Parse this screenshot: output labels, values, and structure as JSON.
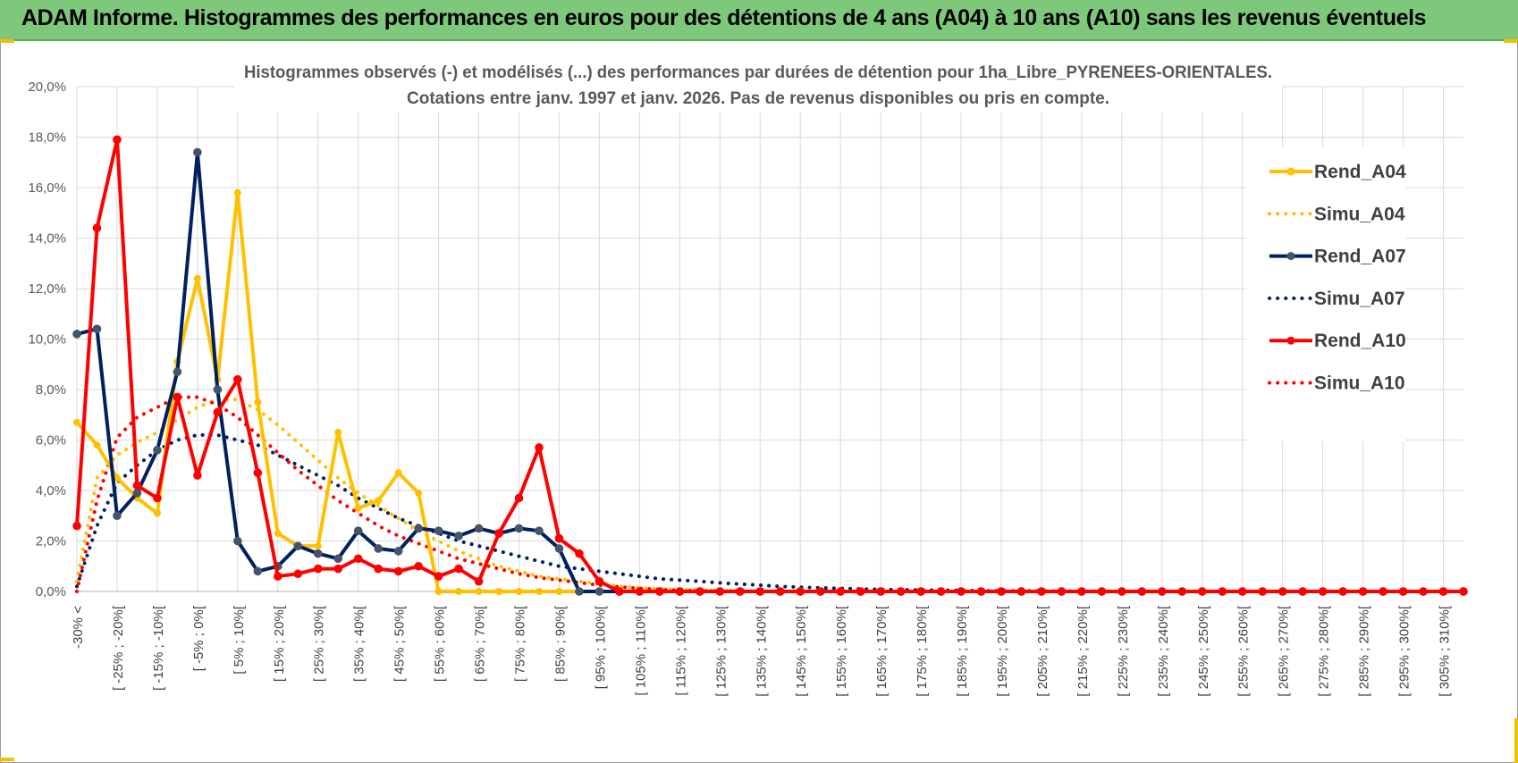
{
  "header": {
    "title": "ADAM Informe. Histogrammes des performances en euros pour des détentions de 4 ans (A04) à 10 ans (A10) sans les revenus éventuels"
  },
  "colors": {
    "banner": "#7dc87a",
    "A04": "#ffc000",
    "A07": "#002060",
    "A10": "#ff0000",
    "grid": "#d9d9d9"
  },
  "chart_data": {
    "type": "line",
    "title": "Histogrammes observés (-) et modélisés (...) des performances par durées de détention pour 1ha_Libre_PYRENEES-ORIENTALES.",
    "subtitle": "Cotations entre janv. 1997 et janv. 2026. Pas de revenus disponibles ou pris en compte.",
    "xlabel": "",
    "ylabel": "",
    "ylim": [
      0,
      20
    ],
    "y_ticks": [
      "0,0%",
      "2,0%",
      "4,0%",
      "6,0%",
      "8,0%",
      "10,0%",
      "12,0%",
      "14,0%",
      "16,0%",
      "18,0%",
      "20,0%"
    ],
    "grid": true,
    "legend_position": "right",
    "categories": [
      "-30% <",
      "[ -30% ; -25%[",
      "[ -25% ; -20%[",
      "[ -20% ; -15%[",
      "[ -15% ; -10%[",
      "[ -10% ; -5%[",
      "[ -5% ; 0%[",
      "[ 0% ; 5%[",
      "[ 5% ; 10%[",
      "[ 10% ; 15%[",
      "[ 15% ; 20%[",
      "[ 20% ; 25%[",
      "[ 25% ; 30%[",
      "[ 30% ; 35%[",
      "[ 35% ; 40%[",
      "[ 40% ; 45%[",
      "[ 45% ; 50%[",
      "[ 50% ; 55%[",
      "[ 55% ; 60%[",
      "[ 60% ; 65%[",
      "[ 65% ; 70%[",
      "[ 70% ; 75%[",
      "[ 75% ; 80%[",
      "[ 80% ; 85%[",
      "[ 85% ; 90%[",
      "[ 90% ; 95%[",
      "[ 95% ; 100%[",
      "[ 100% ; 105%[",
      "[ 105% ; 110%[",
      "[ 110% ; 115%[",
      "[ 115% ; 120%[",
      "[ 120% ; 125%[",
      "[ 125% ; 130%[",
      "[ 130% ; 135%[",
      "[ 135% ; 140%[",
      "[ 140% ; 145%[",
      "[ 145% ; 150%[",
      "[ 150% ; 155%[",
      "[ 155% ; 160%[",
      "[ 160% ; 165%[",
      "[ 165% ; 170%[",
      "[ 170% ; 175%[",
      "[ 175% ; 180%[",
      "[ 180% ; 185%[",
      "[ 185% ; 190%[",
      "[ 190% ; 195%[",
      "[ 195% ; 200%[",
      "[ 200% ; 205%[",
      "[ 205% ; 210%[",
      "[ 210% ; 215%[",
      "[ 215% ; 220%[",
      "[ 220% ; 225%[",
      "[ 225% ; 230%[",
      "[ 230% ; 235%[",
      "[ 235% ; 240%[",
      "[ 240% ; 245%[",
      "[ 245% ; 250%[",
      "[ 250% ; 255%[",
      "[ 255% ; 260%[",
      "[ 260% ; 265%[",
      "[ 265% ; 270%[",
      "[ 270% ; 275%[",
      "[ 275% ; 280%[",
      "[ 280% ; 285%[",
      "[ 285% ; 290%[",
      "[ 290% ; 295%[",
      "[ 295% ; 300%[",
      "[ 300% ; 305%[",
      "[ 305% ; 310%[",
      "[ 310% ; 315%["
    ],
    "tick_labels": [
      "-30% <",
      "[ -25% ; -20%[",
      "[ -15% ; -10%[",
      "[ -5% ; 0%[",
      "[ 5% ; 10%[",
      "[ 15% ; 20%[",
      "[ 25% ; 30%[",
      "[ 35% ; 40%[",
      "[ 45% ; 50%[",
      "[ 55% ; 60%[",
      "[ 65% ; 70%[",
      "[ 75% ; 80%[",
      "[ 85% ; 90%[",
      "[ 95% ; 100%[",
      "[ 105% ; 110%[",
      "[ 115% ; 120%[",
      "[ 125% ; 130%[",
      "[ 135% ; 140%[",
      "[ 145% ; 150%[",
      "[ 155% ; 160%[",
      "[ 165% ; 170%[",
      "[ 175% ; 180%[",
      "[ 185% ; 190%[",
      "[ 195% ; 200%[",
      "[ 205% ; 210%[",
      "[ 215% ; 220%[",
      "[ 225% ; 230%[",
      "[ 235% ; 240%[",
      "[ 245% ; 250%[",
      "[ 255% ; 260%[",
      "[ 265% ; 270%[",
      "[ 275% ; 280%[",
      "[ 285% ; 290%[",
      "[ 295% ; 300%[",
      "[ 305% ; 310%["
    ],
    "series": [
      {
        "name": "Rend_A04",
        "style": "solid",
        "color": "#ffc000",
        "values": [
          6.7,
          5.8,
          4.5,
          3.7,
          3.1,
          9.1,
          12.4,
          8.4,
          15.8,
          7.5,
          2.3,
          1.8,
          1.8,
          6.3,
          3.3,
          3.6,
          4.7,
          3.9,
          0,
          0,
          0,
          0,
          0,
          0,
          0,
          0,
          0,
          0,
          0,
          0,
          0,
          0,
          0,
          0,
          0,
          0,
          0,
          0,
          0,
          0,
          0,
          0,
          0,
          0,
          0,
          0,
          0,
          0,
          0,
          0,
          0,
          0,
          0,
          0,
          0,
          0,
          0,
          0,
          0,
          0,
          0,
          0,
          0,
          0,
          0,
          0,
          0,
          0,
          0,
          0
        ]
      },
      {
        "name": "Simu_A04",
        "style": "dotted",
        "color": "#ffc000",
        "values": [
          0.4,
          4.5,
          5.4,
          5.9,
          6.3,
          6.8,
          7.3,
          7.6,
          7.6,
          7.2,
          6.6,
          5.9,
          5.2,
          4.5,
          3.9,
          3.4,
          2.9,
          2.4,
          2.0,
          1.6,
          1.3,
          1.0,
          0.8,
          0.6,
          0.5,
          0.4,
          0.3,
          0.2,
          0.15,
          0.1,
          0.08,
          0.06,
          0.04,
          0.03,
          0.02,
          0.01,
          0.01,
          0,
          0,
          0,
          0,
          0,
          0,
          0,
          0,
          0,
          0,
          0,
          0,
          0,
          0,
          0,
          0,
          0,
          0,
          0,
          0,
          0,
          0,
          0,
          0,
          0,
          0,
          0,
          0,
          0,
          0,
          0,
          0,
          0
        ]
      },
      {
        "name": "Rend_A07",
        "style": "solid",
        "color": "#002060",
        "values": [
          10.2,
          10.4,
          3.0,
          3.9,
          5.6,
          8.7,
          17.4,
          8.0,
          2.0,
          0.8,
          1.0,
          1.8,
          1.5,
          1.3,
          2.4,
          1.7,
          1.6,
          2.5,
          2.4,
          2.2,
          2.5,
          2.3,
          2.5,
          2.4,
          1.7,
          0,
          0,
          0,
          0,
          0,
          0,
          0,
          0,
          0,
          0,
          0,
          0,
          0,
          0,
          0,
          0,
          0,
          0,
          0,
          0,
          0,
          0,
          0,
          0,
          0,
          0,
          0,
          0,
          0,
          0,
          0,
          0,
          0,
          0,
          0,
          0,
          0,
          0,
          0,
          0,
          0,
          0,
          0,
          0,
          0
        ]
      },
      {
        "name": "Simu_A07",
        "style": "dotted",
        "color": "#002060",
        "values": [
          0.2,
          2.6,
          4.3,
          5.0,
          5.6,
          6.0,
          6.2,
          6.2,
          6.0,
          5.8,
          5.4,
          5.0,
          4.6,
          4.2,
          3.7,
          3.3,
          2.9,
          2.6,
          2.3,
          2.0,
          1.8,
          1.6,
          1.4,
          1.2,
          1.0,
          0.9,
          0.8,
          0.7,
          0.6,
          0.5,
          0.45,
          0.4,
          0.34,
          0.29,
          0.25,
          0.2,
          0.17,
          0.14,
          0.12,
          0.1,
          0.08,
          0.07,
          0.06,
          0.05,
          0.04,
          0.03,
          0.03,
          0.02,
          0.02,
          0.01,
          0.01,
          0.01,
          0,
          0,
          0,
          0,
          0,
          0,
          0,
          0,
          0,
          0,
          0,
          0,
          0,
          0,
          0,
          0,
          0,
          0
        ]
      },
      {
        "name": "Rend_A10",
        "style": "solid",
        "color": "#ff0000",
        "values": [
          2.6,
          14.4,
          17.9,
          4.2,
          3.7,
          7.7,
          4.6,
          7.1,
          8.4,
          4.7,
          0.6,
          0.7,
          0.9,
          0.9,
          1.3,
          0.9,
          0.8,
          1.0,
          0.6,
          0.9,
          0.4,
          2.3,
          3.7,
          5.7,
          2.1,
          1.5,
          0.4,
          0,
          0,
          0,
          0,
          0,
          0,
          0,
          0,
          0,
          0,
          0,
          0,
          0,
          0,
          0,
          0,
          0,
          0,
          0,
          0,
          0,
          0,
          0,
          0,
          0,
          0,
          0,
          0,
          0,
          0,
          0,
          0,
          0,
          0,
          0,
          0,
          0,
          0,
          0,
          0,
          0,
          0,
          0
        ]
      },
      {
        "name": "Simu_A10",
        "style": "dotted",
        "color": "#ff0000",
        "values": [
          0,
          3.6,
          6.1,
          6.9,
          7.3,
          7.7,
          7.7,
          7.4,
          6.9,
          6.2,
          5.5,
          4.8,
          4.2,
          3.6,
          3.1,
          2.6,
          2.2,
          1.9,
          1.6,
          1.3,
          1.1,
          0.9,
          0.7,
          0.55,
          0.45,
          0.35,
          0.25,
          0.18,
          0.12,
          0.08,
          0.05,
          0.03,
          0.02,
          0.01,
          0,
          0,
          0,
          0,
          0,
          0,
          0,
          0,
          0,
          0,
          0,
          0,
          0,
          0,
          0,
          0,
          0,
          0,
          0,
          0,
          0,
          0,
          0,
          0,
          0,
          0,
          0,
          0,
          0,
          0,
          0,
          0,
          0,
          0,
          0,
          0
        ]
      }
    ]
  }
}
